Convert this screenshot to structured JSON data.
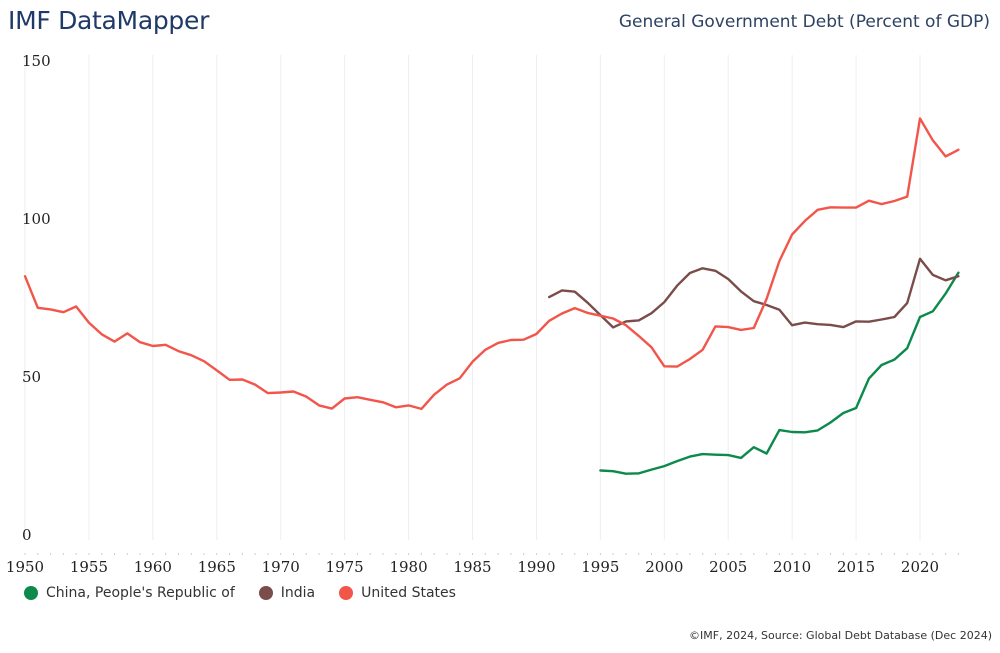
{
  "header": {
    "brand": "IMF DataMapper",
    "indicator_title": "General Government Debt (Percent of GDP)"
  },
  "footer": {
    "source": "©IMF, 2024, Source: Global Debt Database (Dec 2024)"
  },
  "chart_data": {
    "type": "line",
    "title": "General Government Debt (Percent of GDP)",
    "xlabel": "",
    "ylabel": "",
    "xlim": [
      1950,
      2023
    ],
    "ylim": [
      0,
      150
    ],
    "x_ticks": [
      1950,
      1955,
      1960,
      1965,
      1970,
      1975,
      1980,
      1985,
      1990,
      1995,
      2000,
      2005,
      2010,
      2015,
      2020
    ],
    "x_tick_labels": [
      "1950",
      "1955",
      "1960",
      "1965",
      "1970",
      "1975",
      "1980",
      "1985",
      "1990",
      "1995",
      "2000",
      "2005",
      "2010",
      "2015",
      "2020"
    ],
    "y_ticks": [
      0,
      50,
      100,
      150
    ],
    "y_tick_labels": [
      "0",
      "50",
      "100",
      "150"
    ],
    "grid": "vertical",
    "legend_position": "bottom-left",
    "series": [
      {
        "name": "China, People's Republic of",
        "color": "#0b8a4b",
        "x": [
          1995,
          1996,
          1997,
          1998,
          1999,
          2000,
          2001,
          2002,
          2003,
          2004,
          2005,
          2006,
          2007,
          2008,
          2009,
          2010,
          2011,
          2012,
          2013,
          2014,
          2015,
          2016,
          2017,
          2018,
          2019,
          2020,
          2021,
          2022,
          2023
        ],
        "values": [
          20.4,
          20.2,
          19.4,
          19.5,
          20.7,
          21.8,
          23.4,
          24.8,
          25.6,
          25.4,
          25.3,
          24.4,
          27.8,
          25.8,
          33.2,
          32.6,
          32.5,
          33.1,
          35.6,
          38.6,
          40.2,
          49.5,
          53.8,
          55.5,
          59.1,
          69.0,
          70.8,
          76.4,
          83.0
        ]
      },
      {
        "name": "India",
        "color": "#7a4d4a",
        "x": [
          1991,
          1992,
          1993,
          1994,
          1995,
          1996,
          1997,
          1998,
          1999,
          2000,
          2001,
          2002,
          2003,
          2004,
          2005,
          2006,
          2007,
          2008,
          2009,
          2010,
          2011,
          2012,
          2013,
          2014,
          2015,
          2016,
          2017,
          2018,
          2019,
          2020,
          2021,
          2022,
          2023
        ],
        "values": [
          75.3,
          77.4,
          77.0,
          73.5,
          69.6,
          65.7,
          67.6,
          67.9,
          70.2,
          73.7,
          78.9,
          82.9,
          84.4,
          83.6,
          81.0,
          77.1,
          74.0,
          72.8,
          71.3,
          66.4,
          67.2,
          66.7,
          66.5,
          65.8,
          67.6,
          67.5,
          68.2,
          69.0,
          73.4,
          87.4,
          82.3,
          80.6,
          81.9
        ]
      },
      {
        "name": "United States",
        "color": "#f2554a",
        "x": [
          1950,
          1951,
          1952,
          1953,
          1954,
          1955,
          1956,
          1957,
          1958,
          1959,
          1960,
          1961,
          1962,
          1963,
          1964,
          1965,
          1966,
          1967,
          1968,
          1969,
          1970,
          1971,
          1972,
          1973,
          1974,
          1975,
          1976,
          1977,
          1978,
          1979,
          1980,
          1981,
          1982,
          1983,
          1984,
          1985,
          1986,
          1987,
          1988,
          1989,
          1990,
          1991,
          1992,
          1993,
          1994,
          1995,
          1996,
          1997,
          1998,
          1999,
          2000,
          2001,
          2002,
          2003,
          2004,
          2005,
          2006,
          2007,
          2008,
          2009,
          2010,
          2011,
          2012,
          2013,
          2014,
          2015,
          2016,
          2017,
          2018,
          2019,
          2020,
          2021,
          2022,
          2023
        ],
        "values": [
          81.9,
          71.9,
          71.4,
          70.5,
          72.3,
          67.2,
          63.5,
          61.2,
          63.8,
          61.0,
          59.8,
          60.2,
          58.2,
          56.9,
          55.0,
          52.1,
          49.1,
          49.2,
          47.6,
          44.9,
          45.1,
          45.4,
          43.8,
          41.0,
          40.0,
          43.2,
          43.6,
          42.8,
          42.0,
          40.4,
          41.0,
          39.9,
          44.4,
          47.6,
          49.6,
          54.8,
          58.6,
          60.8,
          61.7,
          61.8,
          63.6,
          67.8,
          70.1,
          71.8,
          70.3,
          69.4,
          68.5,
          66.4,
          63.0,
          59.4,
          53.4,
          53.3,
          55.7,
          58.6,
          66.0,
          65.8,
          64.9,
          65.5,
          74.7,
          86.7,
          95.1,
          99.4,
          102.9,
          103.7,
          103.6,
          103.6,
          105.8,
          104.7,
          105.7,
          107.1,
          131.8,
          124.9,
          119.8,
          121.9
        ]
      }
    ]
  }
}
